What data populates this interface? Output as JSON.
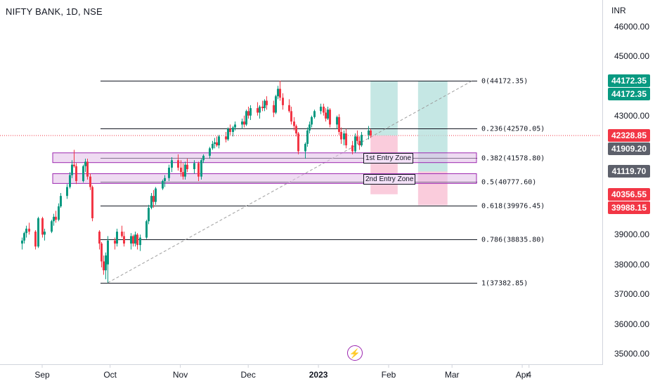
{
  "header": {
    "symbol_title": "NIFTY BANK, 1D, NSE"
  },
  "y_axis": {
    "unit": "INR",
    "ticks": [
      "46000.00",
      "45000.00",
      "43000.00",
      "39000.00",
      "38000.00",
      "37000.00",
      "36000.00",
      "35000.00"
    ]
  },
  "x_axis": {
    "ticks": [
      {
        "label": "Sep",
        "date": "2022-09-01"
      },
      {
        "label": "Oct",
        "date": "2022-10-01"
      },
      {
        "label": "Nov",
        "date": "2022-11-01"
      },
      {
        "label": "Dec",
        "date": "2022-12-01"
      },
      {
        "label": "2023",
        "date": "2023-01-01",
        "bold": true
      },
      {
        "label": "Feb",
        "date": "2023-02-01"
      },
      {
        "label": "Mar",
        "date": "2023-03-01"
      },
      {
        "label": "Apr",
        "date": "2023-04-01"
      },
      {
        "label": "4",
        "date": "2023-04-04"
      }
    ]
  },
  "price_badges": [
    {
      "label": "44172.35",
      "value": 44172.35,
      "color": "#089981"
    },
    {
      "label": "44172.35",
      "value": 44172.35,
      "color": "#089981"
    },
    {
      "label": "42328.85",
      "value": 42328.85,
      "color": "#f23645"
    },
    {
      "label": "41909.20",
      "value": 41909.2,
      "color": "#5d606b"
    },
    {
      "label": "41119.70",
      "value": 41119.7,
      "color": "#5d606b"
    },
    {
      "label": "40356.55",
      "value": 40356.55,
      "color": "#f23645"
    },
    {
      "label": "39988.15",
      "value": 39988.15,
      "color": "#f23645"
    }
  ],
  "fib_levels": [
    {
      "label": "0(44172.35)",
      "value": 44172.35
    },
    {
      "label": "0.236(42570.05)",
      "value": 42570.05
    },
    {
      "label": "0.382(41578.80)",
      "value": 41578.8
    },
    {
      "label": "0.5(40777.60)",
      "value": 40777.6
    },
    {
      "label": "0.618(39976.45)",
      "value": 39976.45
    },
    {
      "label": "0.786(38835.80)",
      "value": 38835.8
    },
    {
      "label": "1(37382.85)",
      "value": 37382.85
    }
  ],
  "zones": [
    {
      "label": "1st Entry Zone",
      "top": 41748,
      "bottom": 41420
    },
    {
      "label": "2nd Entry Zone",
      "top": 41048,
      "bottom": 40720
    }
  ],
  "positions": [
    {
      "date_start": "2023-01-24",
      "date_end": "2023-02-05",
      "target": 44172.35,
      "entry": 42328.85,
      "stop": 40356.55
    },
    {
      "date_start": "2023-02-14",
      "date_end": "2023-02-27",
      "target": 44172.35,
      "entry": 41119.7,
      "stop": 39988.15
    }
  ],
  "last_price": 42328.85,
  "colors": {
    "up": "#089981",
    "down": "#f23645",
    "zone": "#e1bee7",
    "zone_border": "#9c27b0",
    "profit": "#b2dfdb",
    "loss": "#f8bbd0",
    "badge_green": "#089981",
    "badge_red": "#f23645",
    "badge_grey": "#5d606b"
  },
  "icons": {
    "events": "flash-icon"
  },
  "chart_data": {
    "type": "candlestick",
    "title": "NIFTY BANK, 1D, NSE",
    "y_unit": "INR",
    "ylim": [
      34700,
      46700
    ],
    "trendline": [
      {
        "date": "2022-09-30",
        "value": 37382.85
      },
      {
        "date": "2023-03-10",
        "value": 44172.35
      }
    ],
    "candles": [
      {
        "d": "2022-08-23",
        "o": 38700,
        "h": 38900,
        "l": 38500,
        "c": 38800
      },
      {
        "d": "2022-08-24",
        "o": 38800,
        "h": 39100,
        "l": 38700,
        "c": 39050
      },
      {
        "d": "2022-08-25",
        "o": 39050,
        "h": 39300,
        "l": 38900,
        "c": 39200
      },
      {
        "d": "2022-08-26",
        "o": 39200,
        "h": 39400,
        "l": 39000,
        "c": 39100
      },
      {
        "d": "2022-08-29",
        "o": 39100,
        "h": 39150,
        "l": 38500,
        "c": 38600
      },
      {
        "d": "2022-08-30",
        "o": 38600,
        "h": 39600,
        "l": 38550,
        "c": 39550
      },
      {
        "d": "2022-09-01",
        "o": 39550,
        "h": 39600,
        "l": 38900,
        "c": 39000
      },
      {
        "d": "2022-09-02",
        "o": 39000,
        "h": 39200,
        "l": 38800,
        "c": 39100
      },
      {
        "d": "2022-09-05",
        "o": 39100,
        "h": 39500,
        "l": 39050,
        "c": 39450
      },
      {
        "d": "2022-09-06",
        "o": 39450,
        "h": 39700,
        "l": 39300,
        "c": 39600
      },
      {
        "d": "2022-09-07",
        "o": 39600,
        "h": 39800,
        "l": 39400,
        "c": 39500
      },
      {
        "d": "2022-09-08",
        "o": 39500,
        "h": 40050,
        "l": 39450,
        "c": 39950
      },
      {
        "d": "2022-09-09",
        "o": 39950,
        "h": 40400,
        "l": 39900,
        "c": 40300
      },
      {
        "d": "2022-09-12",
        "o": 40300,
        "h": 40700,
        "l": 40200,
        "c": 40600
      },
      {
        "d": "2022-09-13",
        "o": 40600,
        "h": 41100,
        "l": 40550,
        "c": 41000
      },
      {
        "d": "2022-09-14",
        "o": 41000,
        "h": 41500,
        "l": 40900,
        "c": 41350
      },
      {
        "d": "2022-09-15",
        "o": 41350,
        "h": 41850,
        "l": 41250,
        "c": 41300
      },
      {
        "d": "2022-09-16",
        "o": 41300,
        "h": 41400,
        "l": 40700,
        "c": 40800
      },
      {
        "d": "2022-09-19",
        "o": 40800,
        "h": 41350,
        "l": 40750,
        "c": 41300
      },
      {
        "d": "2022-09-20",
        "o": 41300,
        "h": 41550,
        "l": 41100,
        "c": 41450
      },
      {
        "d": "2022-09-21",
        "o": 41450,
        "h": 41550,
        "l": 40850,
        "c": 40950
      },
      {
        "d": "2022-09-22",
        "o": 40950,
        "h": 41050,
        "l": 40500,
        "c": 40600
      },
      {
        "d": "2022-09-23",
        "o": 40600,
        "h": 40650,
        "l": 39450,
        "c": 39550
      },
      {
        "d": "2022-09-26",
        "o": 39100,
        "h": 39150,
        "l": 38500,
        "c": 38700
      },
      {
        "d": "2022-09-27",
        "o": 38700,
        "h": 38750,
        "l": 37900,
        "c": 38100
      },
      {
        "d": "2022-09-28",
        "o": 38100,
        "h": 38300,
        "l": 37650,
        "c": 37800
      },
      {
        "d": "2022-09-29",
        "o": 37800,
        "h": 38400,
        "l": 37500,
        "c": 38300
      },
      {
        "d": "2022-09-30",
        "o": 38000,
        "h": 38950,
        "l": 37382.85,
        "c": 38800
      },
      {
        "d": "2022-10-03",
        "o": 38800,
        "h": 38900,
        "l": 38500,
        "c": 38700
      },
      {
        "d": "2022-10-04",
        "o": 38700,
        "h": 39200,
        "l": 38600,
        "c": 39100
      },
      {
        "d": "2022-10-06",
        "o": 39100,
        "h": 39300,
        "l": 38900,
        "c": 38950
      },
      {
        "d": "2022-10-07",
        "o": 38950,
        "h": 39100,
        "l": 38600,
        "c": 38700
      },
      {
        "d": "2022-10-10",
        "o": 38700,
        "h": 39050,
        "l": 38500,
        "c": 38950
      },
      {
        "d": "2022-10-11",
        "o": 38950,
        "h": 39000,
        "l": 38600,
        "c": 38700
      },
      {
        "d": "2022-10-12",
        "o": 38700,
        "h": 39100,
        "l": 38600,
        "c": 39000
      },
      {
        "d": "2022-10-13",
        "o": 39000,
        "h": 39050,
        "l": 38500,
        "c": 38650
      },
      {
        "d": "2022-10-14",
        "o": 38650,
        "h": 39000,
        "l": 38450,
        "c": 38900
      },
      {
        "d": "2022-10-17",
        "o": 38900,
        "h": 39500,
        "l": 38850,
        "c": 39450
      },
      {
        "d": "2022-10-18",
        "o": 39450,
        "h": 40000,
        "l": 39350,
        "c": 39900
      },
      {
        "d": "2022-10-19",
        "o": 39900,
        "h": 40400,
        "l": 39850,
        "c": 40300
      },
      {
        "d": "2022-10-20",
        "o": 40300,
        "h": 40500,
        "l": 39900,
        "c": 40100
      },
      {
        "d": "2022-10-21",
        "o": 40100,
        "h": 40600,
        "l": 40000,
        "c": 40550
      },
      {
        "d": "2022-10-24",
        "o": 40550,
        "h": 40850,
        "l": 40500,
        "c": 40800
      },
      {
        "d": "2022-10-25",
        "o": 40800,
        "h": 41000,
        "l": 40600,
        "c": 40900
      },
      {
        "d": "2022-10-27",
        "o": 40900,
        "h": 41350,
        "l": 40800,
        "c": 41250
      },
      {
        "d": "2022-10-28",
        "o": 41250,
        "h": 41600,
        "l": 41100,
        "c": 41500
      },
      {
        "d": "2022-10-31",
        "o": 41500,
        "h": 41700,
        "l": 41150,
        "c": 41250
      },
      {
        "d": "2022-11-01",
        "o": 41250,
        "h": 41500,
        "l": 40950,
        "c": 41100
      },
      {
        "d": "2022-11-02",
        "o": 41100,
        "h": 41400,
        "l": 40850,
        "c": 40950
      },
      {
        "d": "2022-11-03",
        "o": 40950,
        "h": 41450,
        "l": 40850,
        "c": 41350
      },
      {
        "d": "2022-11-04",
        "o": 41350,
        "h": 41550,
        "l": 41100,
        "c": 41200
      },
      {
        "d": "2022-11-07",
        "o": 41200,
        "h": 41500,
        "l": 41050,
        "c": 41400
      },
      {
        "d": "2022-11-09",
        "o": 41400,
        "h": 41450,
        "l": 40800,
        "c": 40950
      },
      {
        "d": "2022-11-10",
        "o": 40950,
        "h": 41550,
        "l": 40850,
        "c": 41500
      },
      {
        "d": "2022-11-11",
        "o": 41500,
        "h": 41700,
        "l": 41400,
        "c": 41650
      },
      {
        "d": "2022-11-14",
        "o": 41650,
        "h": 41950,
        "l": 41550,
        "c": 41900
      },
      {
        "d": "2022-11-15",
        "o": 41900,
        "h": 42150,
        "l": 41850,
        "c": 42050
      },
      {
        "d": "2022-11-16",
        "o": 42050,
        "h": 42250,
        "l": 41900,
        "c": 42100
      },
      {
        "d": "2022-11-17",
        "o": 42100,
        "h": 42300,
        "l": 41950,
        "c": 42000
      },
      {
        "d": "2022-11-18",
        "o": 42000,
        "h": 42350,
        "l": 41900,
        "c": 42300
      },
      {
        "d": "2022-11-21",
        "o": 42300,
        "h": 42450,
        "l": 42100,
        "c": 42200
      },
      {
        "d": "2022-11-22",
        "o": 42200,
        "h": 42600,
        "l": 42150,
        "c": 42550
      },
      {
        "d": "2022-11-23",
        "o": 42550,
        "h": 42700,
        "l": 42350,
        "c": 42450
      },
      {
        "d": "2022-11-24",
        "o": 42450,
        "h": 42650,
        "l": 42300,
        "c": 42600
      },
      {
        "d": "2022-11-25",
        "o": 42600,
        "h": 42800,
        "l": 42500,
        "c": 42700
      },
      {
        "d": "2022-11-28",
        "o": 42700,
        "h": 42900,
        "l": 42550,
        "c": 42800
      },
      {
        "d": "2022-11-29",
        "o": 42800,
        "h": 43000,
        "l": 42600,
        "c": 42700
      },
      {
        "d": "2022-11-30",
        "o": 42700,
        "h": 43200,
        "l": 42650,
        "c": 43150
      },
      {
        "d": "2022-12-01",
        "o": 43150,
        "h": 43300,
        "l": 42900,
        "c": 43000
      },
      {
        "d": "2022-12-02",
        "o": 43000,
        "h": 43350,
        "l": 42850,
        "c": 43250
      },
      {
        "d": "2022-12-05",
        "o": 43250,
        "h": 43450,
        "l": 43000,
        "c": 43100
      },
      {
        "d": "2022-12-06",
        "o": 43100,
        "h": 43350,
        "l": 42900,
        "c": 43300
      },
      {
        "d": "2022-12-07",
        "o": 43300,
        "h": 43500,
        "l": 43150,
        "c": 43250
      },
      {
        "d": "2022-12-08",
        "o": 43250,
        "h": 43550,
        "l": 43150,
        "c": 43500
      },
      {
        "d": "2022-12-09",
        "o": 43500,
        "h": 43650,
        "l": 43200,
        "c": 43350
      },
      {
        "d": "2022-12-12",
        "o": 43350,
        "h": 43500,
        "l": 42950,
        "c": 43100
      },
      {
        "d": "2022-12-13",
        "o": 43100,
        "h": 43700,
        "l": 43050,
        "c": 43650
      },
      {
        "d": "2022-12-14",
        "o": 43650,
        "h": 44000,
        "l": 43550,
        "c": 43900
      },
      {
        "d": "2022-12-15",
        "o": 43900,
        "h": 44172.35,
        "l": 43500,
        "c": 43600
      },
      {
        "d": "2022-12-16",
        "o": 43600,
        "h": 43750,
        "l": 43200,
        "c": 43350
      },
      {
        "d": "2022-12-19",
        "o": 43350,
        "h": 43550,
        "l": 43100,
        "c": 43150
      },
      {
        "d": "2022-12-20",
        "o": 43150,
        "h": 43300,
        "l": 42700,
        "c": 42800
      },
      {
        "d": "2022-12-21",
        "o": 42800,
        "h": 42950,
        "l": 42500,
        "c": 42650
      },
      {
        "d": "2022-12-22",
        "o": 42650,
        "h": 42700,
        "l": 42300,
        "c": 42400
      },
      {
        "d": "2022-12-23",
        "o": 42400,
        "h": 42450,
        "l": 41700,
        "c": 41800
      },
      {
        "d": "2022-12-26",
        "o": 41800,
        "h": 42100,
        "l": 41550,
        "c": 42050
      },
      {
        "d": "2022-12-27",
        "o": 42050,
        "h": 42600,
        "l": 41950,
        "c": 42500
      },
      {
        "d": "2022-12-28",
        "o": 42500,
        "h": 42800,
        "l": 42400,
        "c": 42700
      },
      {
        "d": "2022-12-29",
        "o": 42700,
        "h": 43000,
        "l": 42600,
        "c": 42950
      },
      {
        "d": "2022-12-30",
        "o": 42950,
        "h": 43200,
        "l": 42900,
        "c": 43150
      },
      {
        "d": "2023-01-02",
        "o": 43150,
        "h": 43400,
        "l": 43050,
        "c": 43300
      },
      {
        "d": "2023-01-03",
        "o": 43300,
        "h": 43400,
        "l": 43000,
        "c": 43100
      },
      {
        "d": "2023-01-04",
        "o": 43100,
        "h": 43250,
        "l": 42800,
        "c": 42900
      },
      {
        "d": "2023-01-05",
        "o": 42900,
        "h": 43300,
        "l": 42850,
        "c": 43200
      },
      {
        "d": "2023-01-06",
        "o": 43200,
        "h": 43250,
        "l": 42600,
        "c": 42700
      },
      {
        "d": "2023-01-09",
        "o": 42700,
        "h": 43000,
        "l": 42550,
        "c": 42950
      },
      {
        "d": "2023-01-10",
        "o": 42950,
        "h": 43050,
        "l": 42350,
        "c": 42450
      },
      {
        "d": "2023-01-11",
        "o": 42450,
        "h": 42600,
        "l": 42050,
        "c": 42200
      },
      {
        "d": "2023-01-12",
        "o": 42200,
        "h": 42500,
        "l": 42000,
        "c": 42400
      },
      {
        "d": "2023-01-13",
        "o": 42400,
        "h": 42550,
        "l": 41900,
        "c": 42000
      },
      {
        "d": "2023-01-16",
        "o": 42000,
        "h": 42150,
        "l": 41700,
        "c": 41800
      },
      {
        "d": "2023-01-17",
        "o": 41800,
        "h": 42400,
        "l": 41750,
        "c": 42300
      },
      {
        "d": "2023-01-18",
        "o": 42300,
        "h": 42500,
        "l": 42050,
        "c": 42150
      },
      {
        "d": "2023-01-19",
        "o": 42150,
        "h": 42300,
        "l": 41850,
        "c": 42000
      },
      {
        "d": "2023-01-20",
        "o": 42000,
        "h": 42450,
        "l": 41950,
        "c": 42350
      },
      {
        "d": "2023-01-23",
        "o": 42350,
        "h": 42650,
        "l": 42200,
        "c": 42500
      },
      {
        "d": "2023-01-24",
        "o": 42500,
        "h": 42550,
        "l": 42250,
        "c": 42328.85
      }
    ]
  }
}
